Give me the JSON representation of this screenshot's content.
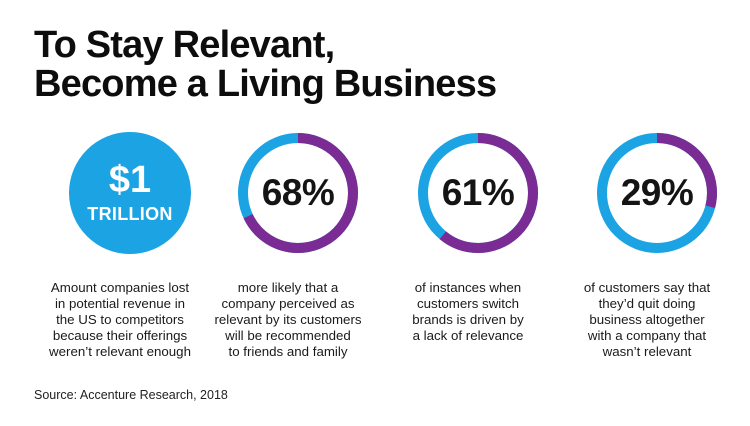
{
  "title_lines": [
    "To Stay Relevant,",
    "Become a Living Business"
  ],
  "colors": {
    "blue": "#1ba3e3",
    "purple": "#7a2c94",
    "text": "#111111"
  },
  "chart_data": [
    {
      "type": "stat",
      "value_text": "$1",
      "unit_text": "TRILLION",
      "description_lines": [
        "Amount companies lost",
        "in potential revenue in",
        "the US to competitors",
        "because their offerings",
        "weren’t relevant enough"
      ]
    },
    {
      "type": "donut",
      "value": 68,
      "label": "68%",
      "description_lines": [
        "more likely that a",
        "company perceived as",
        "relevant by its customers",
        "will be recommended",
        "to friends and family"
      ]
    },
    {
      "type": "donut",
      "value": 61,
      "label": "61%",
      "description_lines": [
        "of instances when",
        "customers switch",
        "brands is driven by",
        "a lack of relevance"
      ]
    },
    {
      "type": "donut",
      "value": 29,
      "label": "29%",
      "description_lines": [
        "of customers say that",
        "they’d quit doing",
        "business altogether",
        "with a company that",
        "wasn’t relevant"
      ]
    }
  ],
  "source": "Source: Accenture Research, 2018"
}
